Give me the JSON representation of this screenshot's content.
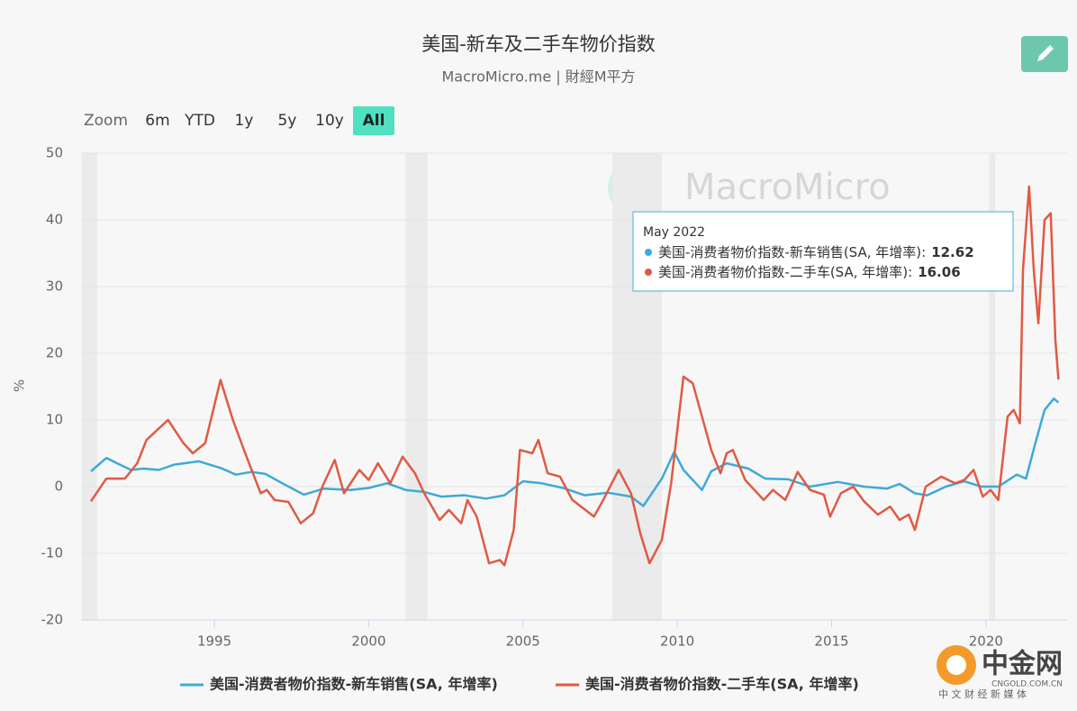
{
  "chart_data": {
    "type": "line",
    "title": "美国-新车及二手车物价指数",
    "subtitle": "MacroMicro.me | 財經M平方",
    "y_label": "%",
    "zoom": {
      "label": "Zoom",
      "buttons": [
        "6m",
        "YTD",
        "1y",
        "5y",
        "10y",
        "All"
      ],
      "active": 5
    },
    "watermark": "MacroMicro",
    "xlim": [
      1990.68,
      2022.63
    ],
    "xticks": [
      1995,
      2000,
      2005,
      2010,
      2015,
      2020
    ],
    "ylim": [
      -20,
      50
    ],
    "yticks": [
      -20,
      -10,
      0,
      10,
      20,
      30,
      40,
      50
    ],
    "grid": true,
    "shaded_periods": [
      [
        1990.7,
        1991.2
      ],
      [
        2001.2,
        2001.9
      ],
      [
        2007.9,
        2009.5
      ],
      [
        2020.1,
        2020.3
      ]
    ],
    "series": [
      {
        "name": "美国-消费者物价指数-新车销售(SA, 年增率)",
        "color": "#3fa9d8",
        "x": [
          1991.0,
          1991.5,
          1991.85,
          1992.3,
          1992.7,
          1993.2,
          1993.7,
          1994.5,
          1995.2,
          1995.7,
          1996.2,
          1996.65,
          1997.2,
          1997.9,
          1998.55,
          1999.4,
          2000.0,
          2000.6,
          2001.2,
          2001.8,
          2002.35,
          2003.1,
          2003.8,
          2004.4,
          2005.0,
          2005.6,
          2006.3,
          2007.0,
          2007.75,
          2008.5,
          2008.9,
          2009.5,
          2009.9,
          2010.2,
          2010.6,
          2010.8,
          2011.1,
          2011.6,
          2012.3,
          2012.85,
          2013.6,
          2014.3,
          2015.2,
          2016.05,
          2016.8,
          2017.2,
          2017.7,
          2018.1,
          2018.7,
          2019.3,
          2019.85,
          2020.4,
          2021.0,
          2021.3,
          2021.6,
          2021.9,
          2022.2,
          2022.35
        ],
        "values": [
          2.3,
          4.3,
          3.5,
          2.5,
          2.7,
          2.5,
          3.3,
          3.8,
          2.8,
          1.8,
          2.2,
          1.9,
          0.5,
          -1.2,
          -0.3,
          -0.5,
          -0.2,
          0.5,
          -0.5,
          -0.8,
          -1.5,
          -1.3,
          -1.8,
          -1.3,
          0.8,
          0.5,
          -0.2,
          -1.3,
          -0.9,
          -1.5,
          -2.9,
          1.2,
          5.2,
          2.5,
          0.5,
          -0.5,
          2.3,
          3.5,
          2.7,
          1.2,
          1.1,
          0.0,
          0.7,
          0.0,
          -0.3,
          0.4,
          -1.0,
          -1.3,
          0.0,
          0.8,
          0.0,
          0.0,
          1.8,
          1.2,
          6.5,
          11.5,
          13.2,
          12.62
        ]
      },
      {
        "name": "美国-消费者物价指数-二手车(SA, 年增率)",
        "color": "#e05a44",
        "x": [
          1991.0,
          1991.5,
          1992.1,
          1992.5,
          1992.8,
          1993.5,
          1994.0,
          1994.3,
          1994.7,
          1995.2,
          1995.6,
          1996.0,
          1996.5,
          1996.7,
          1996.95,
          1997.4,
          1997.8,
          1998.2,
          1998.5,
          1998.9,
          1999.2,
          1999.7,
          2000.0,
          2000.3,
          2000.7,
          2001.1,
          2001.5,
          2001.8,
          2002.3,
          2002.6,
          2003.0,
          2003.2,
          2003.5,
          2003.9,
          2004.25,
          2004.4,
          2004.7,
          2004.9,
          2005.3,
          2005.5,
          2005.8,
          2006.2,
          2006.6,
          2007.3,
          2007.6,
          2008.1,
          2008.5,
          2008.8,
          2009.1,
          2009.5,
          2009.8,
          2010.2,
          2010.5,
          2011.1,
          2011.4,
          2011.6,
          2011.8,
          2012.2,
          2012.8,
          2013.1,
          2013.5,
          2013.9,
          2014.3,
          2014.75,
          2014.95,
          2015.3,
          2015.7,
          2016.05,
          2016.5,
          2016.9,
          2017.2,
          2017.5,
          2017.7,
          2018.05,
          2018.55,
          2019.0,
          2019.3,
          2019.6,
          2019.9,
          2020.15,
          2020.4,
          2020.7,
          2020.9,
          2021.1,
          2021.2,
          2021.4,
          2021.55,
          2021.7,
          2021.9,
          2022.1,
          2022.25,
          2022.35
        ],
        "values": [
          -2.2,
          1.2,
          1.2,
          3.5,
          7.0,
          10.0,
          6.5,
          5.0,
          6.5,
          16.0,
          10.0,
          5.0,
          -1.0,
          -0.5,
          -2.0,
          -2.3,
          -5.5,
          -4.0,
          0.0,
          4.0,
          -1.0,
          2.5,
          1.0,
          3.5,
          0.5,
          4.5,
          2.0,
          -1.0,
          -5.0,
          -3.5,
          -5.5,
          -2.0,
          -4.5,
          -11.5,
          -11.0,
          -11.8,
          -6.5,
          5.5,
          5.0,
          7.0,
          2.0,
          1.5,
          -2.0,
          -4.5,
          -2.0,
          2.5,
          -1.0,
          -7.0,
          -11.5,
          -8.0,
          0.5,
          16.5,
          15.5,
          5.5,
          2.0,
          5.0,
          5.5,
          1.0,
          -2.0,
          -0.5,
          -2.0,
          2.2,
          -0.5,
          -1.2,
          -4.5,
          -1.0,
          0.0,
          -2.2,
          -4.2,
          -3.0,
          -5.0,
          -4.2,
          -6.5,
          0.0,
          1.5,
          0.5,
          1.0,
          2.5,
          -1.5,
          -0.5,
          -2.0,
          10.5,
          11.5,
          9.5,
          32.5,
          45.0,
          32.5,
          24.5,
          40.0,
          41.0,
          22.0,
          16.06
        ]
      }
    ],
    "tooltip": {
      "date": "May 2022",
      "labels": [
        "美国-消费者物价指数-新车销售(SA, 年增率):",
        "美国-消费者物价指数-二手车(SA, 年增率):"
      ]
    },
    "branding": {
      "logo": "中金网",
      "tagline": "中 文 财 经 新 媒 体",
      "site": "CNGOLD.COM.CN"
    }
  }
}
